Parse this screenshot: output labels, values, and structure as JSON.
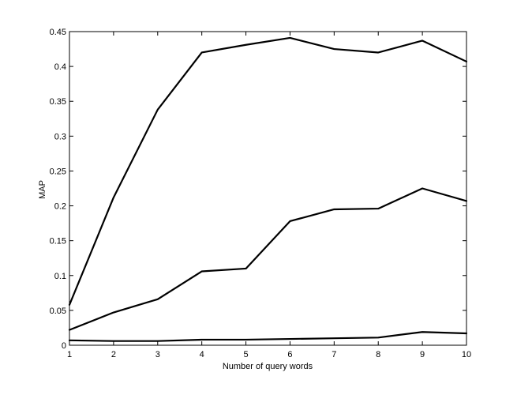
{
  "chart_data": {
    "type": "line",
    "title": "",
    "xlabel": "Number of query words",
    "ylabel": "MAP",
    "xlim": [
      1,
      10
    ],
    "ylim": [
      0,
      0.45
    ],
    "grid": false,
    "legend": "none",
    "x": [
      1,
      2,
      3,
      4,
      5,
      6,
      7,
      8,
      9,
      10
    ],
    "x_ticks": [
      "1",
      "2",
      "3",
      "4",
      "5",
      "6",
      "7",
      "8",
      "9",
      "10"
    ],
    "y_ticks": [
      {
        "value": 0,
        "label": "0"
      },
      {
        "value": 0.05,
        "label": "0.05"
      },
      {
        "value": 0.1,
        "label": "0.1"
      },
      {
        "value": 0.15,
        "label": "0.15"
      },
      {
        "value": 0.2,
        "label": "0.2"
      },
      {
        "value": 0.25,
        "label": "0.25"
      },
      {
        "value": 0.3,
        "label": "0.3"
      },
      {
        "value": 0.35,
        "label": "0.35"
      },
      {
        "value": 0.4,
        "label": "0.4"
      },
      {
        "value": 0.45,
        "label": "0.45"
      }
    ],
    "line_color": "#000000",
    "series": [
      {
        "values": [
          0.058,
          0.212,
          0.338,
          0.42,
          0.431,
          0.441,
          0.425,
          0.42,
          0.437,
          0.407
        ]
      },
      {
        "values": [
          0.022,
          0.047,
          0.066,
          0.106,
          0.11,
          0.178,
          0.195,
          0.196,
          0.225,
          0.207
        ]
      },
      {
        "values": [
          0.007,
          0.006,
          0.006,
          0.008,
          0.008,
          0.009,
          0.01,
          0.011,
          0.019,
          0.017
        ]
      }
    ]
  }
}
